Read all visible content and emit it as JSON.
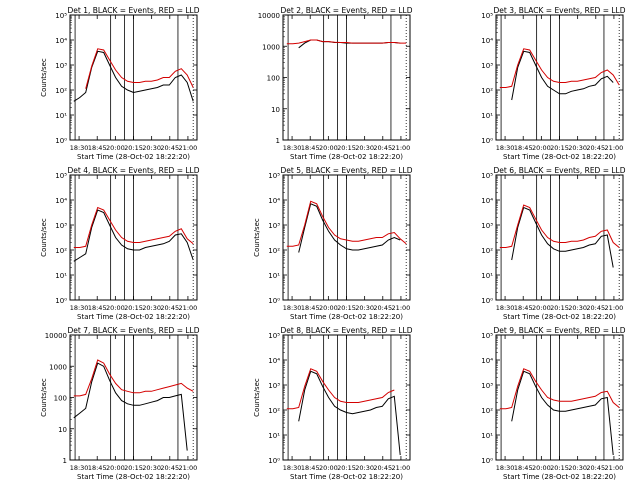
{
  "figure": {
    "xlabel": "Start Time (28-Oct-02 18:22:20)",
    "ylabel": "Counts/sec",
    "xticks": [
      "18:30",
      "18:45",
      "20:00",
      "20:15",
      "20:30",
      "20:45",
      "21:00"
    ]
  },
  "chart_data": [
    {
      "type": "line",
      "title": "Det 1, BLACK = Events, RED = LLD",
      "yscale": "log",
      "ylim": [
        1,
        100000
      ],
      "ylim_exp": [
        0,
        5
      ],
      "ytick_style": "exp",
      "ytick_labels": [
        "10⁰",
        "10¹",
        "10²",
        "10³",
        "10⁴",
        "10⁵"
      ],
      "xlabel": "Start Time (28-Oct-02 18:22:20)",
      "ylabel": "Counts/sec",
      "x_time": [
        "18:25",
        "18:30",
        "18:37",
        "18:40",
        "18:42",
        "18:45",
        "18:50",
        "18:55",
        "19:00",
        "19:05",
        "19:10",
        "19:15",
        "19:20",
        "19:25",
        "19:30",
        "19:35",
        "19:40",
        "19:45",
        "19:48",
        "19:52",
        "20:00"
      ],
      "series": [
        {
          "name": "Events",
          "color": "#000000",
          "log_values": [
            1.55,
            1.7,
            1.9,
            2.9,
            3.55,
            3.5,
            3.0,
            2.5,
            2.15,
            2.0,
            1.9,
            1.95,
            2.0,
            2.05,
            2.1,
            2.2,
            2.2,
            2.5,
            2.6,
            2.3,
            1.55
          ]
        },
        {
          "name": "LLD",
          "color": "#d40000",
          "log_values": [
            null,
            null,
            2.05,
            2.95,
            3.65,
            3.6,
            3.2,
            2.8,
            2.5,
            2.35,
            2.3,
            2.3,
            2.35,
            2.35,
            2.4,
            2.5,
            2.5,
            2.75,
            2.85,
            2.6,
            2.1
          ]
        }
      ]
    },
    {
      "type": "line",
      "title": "Det 2, BLACK = Events, RED = LLD",
      "yscale": "log",
      "ylim": [
        1,
        10000
      ],
      "ylim_exp": [
        0,
        4
      ],
      "ytick_style": "plain",
      "ytick_labels": [
        "1",
        "10",
        "100",
        "1000",
        "10000"
      ],
      "xlabel": "Start Time (28-Oct-02 18:22:20)",
      "ylabel": "",
      "x_time": [
        "18:25",
        "18:30",
        "18:37",
        "18:40",
        "18:42",
        "18:45",
        "18:50",
        "18:55",
        "19:00",
        "19:05",
        "19:10",
        "19:15",
        "19:20",
        "19:25",
        "19:30",
        "19:35",
        "19:40",
        "19:45",
        "19:48",
        "19:52",
        "20:00"
      ],
      "series": [
        {
          "name": "Events",
          "color": "#000000",
          "log_values": [
            null,
            null,
            2.95,
            3.1,
            3.2,
            3.2,
            3.15,
            3.15,
            3.12,
            3.12,
            3.1,
            3.1,
            3.1,
            3.1,
            3.1,
            3.1,
            3.1,
            3.12,
            3.12,
            3.1,
            null
          ]
        },
        {
          "name": "LLD",
          "color": "#d40000",
          "log_values": [
            3.08,
            3.08,
            3.1,
            3.15,
            3.2,
            3.2,
            3.15,
            3.15,
            3.13,
            3.12,
            3.12,
            3.1,
            3.1,
            3.1,
            3.1,
            3.1,
            3.1,
            3.12,
            3.12,
            3.1,
            3.1
          ]
        }
      ]
    },
    {
      "type": "line",
      "title": "Det 3, BLACK = Events, RED = LLD",
      "yscale": "log",
      "ylim": [
        1,
        100000
      ],
      "ylim_exp": [
        0,
        5
      ],
      "ytick_style": "exp",
      "ytick_labels": [
        "10⁰",
        "10¹",
        "10²",
        "10³",
        "10⁴",
        "10⁵"
      ],
      "xlabel": "Start Time (28-Oct-02 18:22:20)",
      "ylabel": "",
      "x_time": [
        "18:25",
        "18:30",
        "18:37",
        "18:40",
        "18:42",
        "18:45",
        "18:50",
        "18:55",
        "19:00",
        "19:05",
        "19:10",
        "19:15",
        "19:20",
        "19:25",
        "19:30",
        "19:35",
        "19:40",
        "19:45",
        "19:48",
        "19:52",
        "20:00"
      ],
      "series": [
        {
          "name": "Events",
          "color": "#000000",
          "log_values": [
            null,
            null,
            1.6,
            2.9,
            3.55,
            3.5,
            3.0,
            2.5,
            2.15,
            2.0,
            1.85,
            1.85,
            1.95,
            2.0,
            2.05,
            2.15,
            2.2,
            2.45,
            2.55,
            2.3,
            null
          ]
        },
        {
          "name": "LLD",
          "color": "#d40000",
          "log_values": [
            2.1,
            2.1,
            2.15,
            3.0,
            3.65,
            3.6,
            3.2,
            2.8,
            2.5,
            2.35,
            2.3,
            2.3,
            2.35,
            2.35,
            2.4,
            2.45,
            2.5,
            2.7,
            2.8,
            2.6,
            2.2
          ]
        }
      ]
    },
    {
      "type": "line",
      "title": "Det 4, BLACK = Events, RED = LLD",
      "yscale": "log",
      "ylim": [
        1,
        100000
      ],
      "ylim_exp": [
        0,
        5
      ],
      "ytick_style": "exp",
      "ytick_labels": [
        "10⁰",
        "10¹",
        "10²",
        "10³",
        "10⁴",
        "10⁵"
      ],
      "xlabel": "Start Time (28-Oct-02 18:22:20)",
      "ylabel": "Counts/sec",
      "x_time": [
        "18:25",
        "18:30",
        "18:37",
        "18:40",
        "18:42",
        "18:45",
        "18:50",
        "18:55",
        "19:00",
        "19:05",
        "19:10",
        "19:15",
        "19:20",
        "19:25",
        "19:30",
        "19:35",
        "19:40",
        "19:45",
        "19:48",
        "19:52",
        "20:00"
      ],
      "series": [
        {
          "name": "Events",
          "color": "#000000",
          "log_values": [
            1.55,
            1.7,
            1.85,
            2.9,
            3.6,
            3.5,
            3.0,
            2.5,
            2.2,
            2.05,
            2.0,
            2.0,
            2.1,
            2.15,
            2.2,
            2.25,
            2.35,
            2.6,
            2.65,
            2.3,
            1.6
          ]
        },
        {
          "name": "LLD",
          "color": "#d40000",
          "log_values": [
            2.1,
            2.1,
            2.15,
            3.0,
            3.7,
            3.6,
            3.2,
            2.8,
            2.5,
            2.35,
            2.3,
            2.3,
            2.35,
            2.4,
            2.45,
            2.5,
            2.55,
            2.75,
            2.85,
            2.45,
            2.25
          ]
        }
      ]
    },
    {
      "type": "line",
      "title": "Det 5, BLACK = Events, RED = LLD",
      "yscale": "log",
      "ylim": [
        1,
        100000
      ],
      "ylim_exp": [
        0,
        5
      ],
      "ytick_style": "exp",
      "ytick_labels": [
        "10⁰",
        "10¹",
        "10²",
        "10³",
        "10⁴",
        "10⁵"
      ],
      "xlabel": "Start Time (28-Oct-02 18:22:20)",
      "ylabel": "Counts/sec",
      "x_time": [
        "18:25",
        "18:30",
        "18:37",
        "18:40",
        "18:42",
        "18:45",
        "18:50",
        "18:55",
        "19:00",
        "19:05",
        "19:10",
        "19:15",
        "19:20",
        "19:25",
        "19:30",
        "19:35",
        "19:40",
        "19:45",
        "19:48",
        "19:52",
        "20:00"
      ],
      "series": [
        {
          "name": "Events",
          "color": "#000000",
          "log_values": [
            null,
            null,
            1.9,
            2.9,
            3.85,
            3.75,
            3.2,
            2.75,
            2.4,
            2.2,
            2.05,
            2.0,
            2.0,
            2.05,
            2.1,
            2.15,
            2.2,
            2.4,
            2.5,
            2.4,
            null
          ]
        },
        {
          "name": "LLD",
          "color": "#d40000",
          "log_values": [
            2.15,
            2.15,
            2.2,
            3.0,
            3.95,
            3.85,
            3.35,
            2.9,
            2.6,
            2.45,
            2.4,
            2.35,
            2.35,
            2.4,
            2.45,
            2.5,
            2.5,
            2.65,
            2.7,
            2.45,
            2.25
          ]
        }
      ]
    },
    {
      "type": "line",
      "title": "Det 6, BLACK = Events, RED = LLD",
      "yscale": "log",
      "ylim": [
        1,
        100000
      ],
      "ylim_exp": [
        0,
        5
      ],
      "ytick_style": "exp",
      "ytick_labels": [
        "10⁰",
        "10¹",
        "10²",
        "10³",
        "10⁴",
        "10⁵"
      ],
      "xlabel": "Start Time (28-Oct-02 18:22:20)",
      "ylabel": "",
      "x_time": [
        "18:25",
        "18:30",
        "18:37",
        "18:40",
        "18:42",
        "18:45",
        "18:50",
        "18:55",
        "19:00",
        "19:05",
        "19:10",
        "19:15",
        "19:20",
        "19:25",
        "19:30",
        "19:35",
        "19:40",
        "19:45",
        "19:48",
        "19:52",
        "20:00"
      ],
      "series": [
        {
          "name": "Events",
          "color": "#000000",
          "log_values": [
            null,
            null,
            1.6,
            2.9,
            3.7,
            3.6,
            3.1,
            2.6,
            2.25,
            2.05,
            1.95,
            1.95,
            2.0,
            2.05,
            2.1,
            2.2,
            2.25,
            2.55,
            2.6,
            1.3,
            null
          ]
        },
        {
          "name": "LLD",
          "color": "#d40000",
          "log_values": [
            2.1,
            2.1,
            2.15,
            3.0,
            3.8,
            3.7,
            3.25,
            2.8,
            2.5,
            2.35,
            2.3,
            2.3,
            2.35,
            2.35,
            2.4,
            2.5,
            2.55,
            2.75,
            2.8,
            2.3,
            2.1
          ]
        }
      ]
    },
    {
      "type": "line",
      "title": "Det 7, BLACK = Events, RED = LLD",
      "yscale": "log",
      "ylim": [
        1,
        10000
      ],
      "ylim_exp": [
        0,
        4
      ],
      "ytick_style": "plain",
      "ytick_labels": [
        "1",
        "10",
        "100",
        "1000",
        "10000"
      ],
      "xlabel": "Start Time (28-Oct-02 18:22:20)",
      "ylabel": "Counts/sec",
      "x_time": [
        "18:25",
        "18:30",
        "18:37",
        "18:40",
        "18:42",
        "18:45",
        "18:50",
        "18:55",
        "19:00",
        "19:05",
        "19:10",
        "19:15",
        "19:20",
        "19:25",
        "19:30",
        "19:35",
        "19:40",
        "19:45",
        "19:48",
        "19:52",
        "20:00"
      ],
      "series": [
        {
          "name": "Events",
          "color": "#000000",
          "log_values": [
            1.35,
            1.5,
            1.65,
            2.5,
            3.1,
            3.0,
            2.55,
            2.15,
            1.9,
            1.8,
            1.75,
            1.75,
            1.8,
            1.85,
            1.9,
            2.0,
            2.0,
            2.05,
            2.1,
            0.3,
            null
          ]
        },
        {
          "name": "LLD",
          "color": "#d40000",
          "log_values": [
            2.05,
            2.05,
            2.1,
            2.6,
            3.2,
            3.1,
            2.75,
            2.45,
            2.25,
            2.2,
            2.15,
            2.15,
            2.2,
            2.2,
            2.25,
            2.3,
            2.35,
            2.4,
            2.45,
            2.3,
            2.2
          ]
        }
      ]
    },
    {
      "type": "line",
      "title": "Det 8, BLACK = Events, RED = LLD",
      "yscale": "log",
      "ylim": [
        1,
        100000
      ],
      "ylim_exp": [
        0,
        5
      ],
      "ytick_style": "exp",
      "ytick_labels": [
        "10⁰",
        "10¹",
        "10²",
        "10³",
        "10⁴",
        "10⁵"
      ],
      "xlabel": "Start Time (28-Oct-02 18:22:20)",
      "ylabel": "Counts/sec",
      "x_time": [
        "18:25",
        "18:30",
        "18:37",
        "18:40",
        "18:42",
        "18:45",
        "18:50",
        "18:55",
        "19:00",
        "19:05",
        "19:10",
        "19:15",
        "19:20",
        "19:25",
        "19:30",
        "19:35",
        "19:40",
        "19:45",
        "19:48",
        "19:52",
        "20:00"
      ],
      "series": [
        {
          "name": "Events",
          "color": "#000000",
          "log_values": [
            null,
            null,
            1.55,
            2.8,
            3.55,
            3.45,
            2.95,
            2.5,
            2.15,
            2.0,
            1.9,
            1.85,
            1.9,
            1.95,
            2.0,
            2.1,
            2.15,
            2.45,
            2.55,
            0.2,
            null
          ]
        },
        {
          "name": "LLD",
          "color": "#d40000",
          "log_values": [
            2.05,
            2.05,
            2.1,
            2.95,
            3.65,
            3.55,
            3.15,
            2.8,
            2.5,
            2.35,
            2.3,
            2.3,
            2.3,
            2.35,
            2.4,
            2.45,
            2.5,
            2.7,
            2.8,
            null,
            null
          ]
        }
      ]
    },
    {
      "type": "line",
      "title": "Det 9, BLACK = Events, RED = LLD",
      "yscale": "log",
      "ylim": [
        1,
        100000
      ],
      "ylim_exp": [
        0,
        5
      ],
      "ytick_style": "exp",
      "ytick_labels": [
        "10⁰",
        "10¹",
        "10²",
        "10³",
        "10⁴",
        "10⁵"
      ],
      "xlabel": "Start Time (28-Oct-02 18:22:20)",
      "ylabel": "",
      "x_time": [
        "18:25",
        "18:30",
        "18:37",
        "18:40",
        "18:42",
        "18:45",
        "18:50",
        "18:55",
        "19:00",
        "19:05",
        "19:10",
        "19:15",
        "19:20",
        "19:25",
        "19:30",
        "19:35",
        "19:40",
        "19:45",
        "19:48",
        "19:52",
        "20:00"
      ],
      "series": [
        {
          "name": "Events",
          "color": "#000000",
          "log_values": [
            null,
            null,
            1.55,
            2.8,
            3.55,
            3.45,
            2.95,
            2.5,
            2.2,
            2.0,
            1.95,
            1.95,
            2.0,
            2.05,
            2.1,
            2.15,
            2.2,
            2.45,
            2.5,
            0.2,
            null
          ]
        },
        {
          "name": "LLD",
          "color": "#d40000",
          "log_values": [
            2.05,
            2.05,
            2.1,
            2.95,
            3.65,
            3.55,
            3.15,
            2.8,
            2.5,
            2.4,
            2.35,
            2.35,
            2.35,
            2.4,
            2.45,
            2.5,
            2.55,
            2.7,
            2.75,
            2.3,
            2.1
          ]
        }
      ]
    }
  ]
}
